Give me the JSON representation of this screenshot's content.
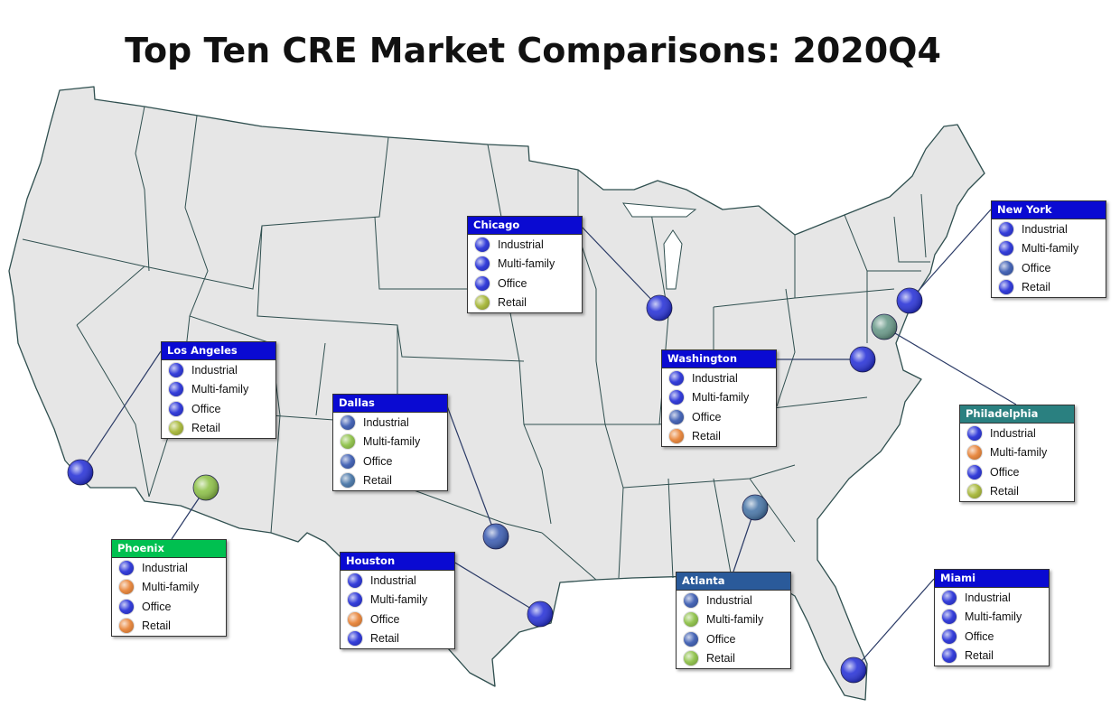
{
  "title": "Top Ten CRE Market Comparisons: 2020Q4",
  "colors": {
    "strong_blue": "#2b35d8",
    "slate_blue": "#3f5fb3",
    "steel_blue": "#4a77a8",
    "olive": "#a8b83a",
    "light_green": "#8fc24a",
    "orange": "#e8853a",
    "land": "#e6e6e6",
    "border": "#2f4f4f"
  },
  "markets": [
    {
      "name": "Chicago",
      "header_color": "#0a0ad2",
      "pin_color": "#2b35d8",
      "rows": [
        {
          "label": "Industrial",
          "color": "#2b35d8"
        },
        {
          "label": "Multi-family",
          "color": "#2b35d8"
        },
        {
          "label": "Office",
          "color": "#2b35d8"
        },
        {
          "label": "Retail",
          "color": "#a8b83a"
        }
      ]
    },
    {
      "name": "New York",
      "header_color": "#0a0ad2",
      "pin_color": "#2b35d8",
      "rows": [
        {
          "label": "Industrial",
          "color": "#2b35d8"
        },
        {
          "label": "Multi-family",
          "color": "#2b35d8"
        },
        {
          "label": "Office",
          "color": "#3f5fb3"
        },
        {
          "label": "Retail",
          "color": "#2b35d8"
        }
      ]
    },
    {
      "name": "Los Angeles",
      "header_color": "#0a0ad2",
      "pin_color": "#2b35d8",
      "rows": [
        {
          "label": "Industrial",
          "color": "#2b35d8"
        },
        {
          "label": "Multi-family",
          "color": "#2b35d8"
        },
        {
          "label": "Office",
          "color": "#2b35d8"
        },
        {
          "label": "Retail",
          "color": "#a8b83a"
        }
      ]
    },
    {
      "name": "Washington",
      "header_color": "#0a0ad2",
      "pin_color": "#2b35d8",
      "rows": [
        {
          "label": "Industrial",
          "color": "#2b35d8"
        },
        {
          "label": "Multi-family",
          "color": "#2b35d8"
        },
        {
          "label": "Office",
          "color": "#3f5fb3"
        },
        {
          "label": "Retail",
          "color": "#e8853a"
        }
      ]
    },
    {
      "name": "Dallas",
      "header_color": "#0a0ad2",
      "pin_color": "#3f5fb3",
      "rows": [
        {
          "label": "Industrial",
          "color": "#3f5fb3"
        },
        {
          "label": "Multi-family",
          "color": "#8fc24a"
        },
        {
          "label": "Office",
          "color": "#3f5fb3"
        },
        {
          "label": "Retail",
          "color": "#4a77a8"
        }
      ]
    },
    {
      "name": "Philadelphia",
      "header_color": "#2a8080",
      "pin_color": "#6a9a8a",
      "rows": [
        {
          "label": "Industrial",
          "color": "#2b35d8"
        },
        {
          "label": "Multi-family",
          "color": "#e8853a"
        },
        {
          "label": "Office",
          "color": "#2b35d8"
        },
        {
          "label": "Retail",
          "color": "#a8b83a"
        }
      ]
    },
    {
      "name": "Phoenix",
      "header_color": "#00c050",
      "pin_color": "#8fc24a",
      "rows": [
        {
          "label": "Industrial",
          "color": "#2b35d8"
        },
        {
          "label": "Multi-family",
          "color": "#e8853a"
        },
        {
          "label": "Office",
          "color": "#2b35d8"
        },
        {
          "label": "Retail",
          "color": "#e8853a"
        }
      ]
    },
    {
      "name": "Houston",
      "header_color": "#0a0ad2",
      "pin_color": "#2b35d8",
      "rows": [
        {
          "label": "Industrial",
          "color": "#2b35d8"
        },
        {
          "label": "Multi-family",
          "color": "#2b35d8"
        },
        {
          "label": "Office",
          "color": "#e8853a"
        },
        {
          "label": "Retail",
          "color": "#2b35d8"
        }
      ]
    },
    {
      "name": "Atlanta",
      "header_color": "#2a5a9a",
      "pin_color": "#4a77a8",
      "rows": [
        {
          "label": "Industrial",
          "color": "#3f5fb3"
        },
        {
          "label": "Multi-family",
          "color": "#8fc24a"
        },
        {
          "label": "Office",
          "color": "#3f5fb3"
        },
        {
          "label": "Retail",
          "color": "#8fc24a"
        }
      ]
    },
    {
      "name": "Miami",
      "header_color": "#0a0ad2",
      "pin_color": "#2b35d8",
      "rows": [
        {
          "label": "Industrial",
          "color": "#2b35d8"
        },
        {
          "label": "Multi-family",
          "color": "#2b35d8"
        },
        {
          "label": "Office",
          "color": "#2b35d8"
        },
        {
          "label": "Retail",
          "color": "#2b35d8"
        }
      ]
    }
  ]
}
